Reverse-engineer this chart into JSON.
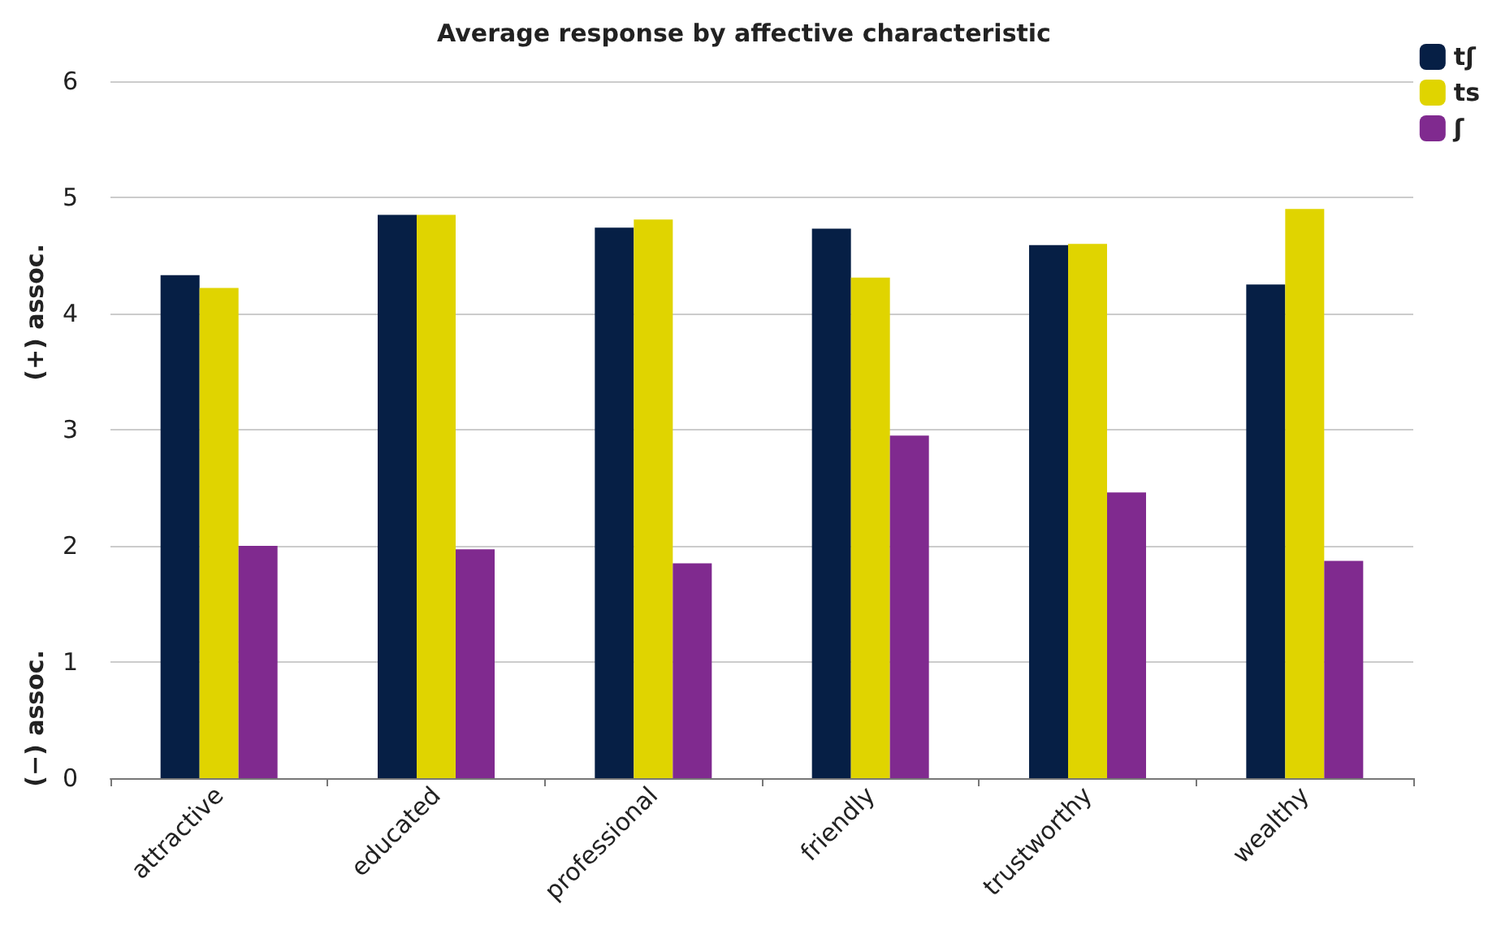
{
  "chart_data": {
    "type": "bar",
    "title": "Average response by affective characteristic",
    "categories": [
      "attractive",
      "educated",
      "professional",
      "friendly",
      "trustworthy",
      "wealthy"
    ],
    "series": [
      {
        "name": "tʃ",
        "color": "#061f45",
        "values": [
          4.33,
          4.85,
          4.74,
          4.73,
          4.59,
          4.25
        ]
      },
      {
        "name": "ts",
        "color": "#e0d400",
        "values": [
          4.22,
          4.85,
          4.81,
          4.31,
          4.6,
          4.9
        ]
      },
      {
        "name": "ʃ",
        "color": "#802a8f",
        "values": [
          2.0,
          1.97,
          1.85,
          2.95,
          2.46,
          1.87
        ]
      }
    ],
    "ylim": [
      0,
      6
    ],
    "yticks": [
      0,
      1,
      2,
      3,
      4,
      5,
      6
    ],
    "grid": "y",
    "legend": "top right",
    "annotations": [
      "(+) assoc.",
      "(−) assoc."
    ]
  }
}
